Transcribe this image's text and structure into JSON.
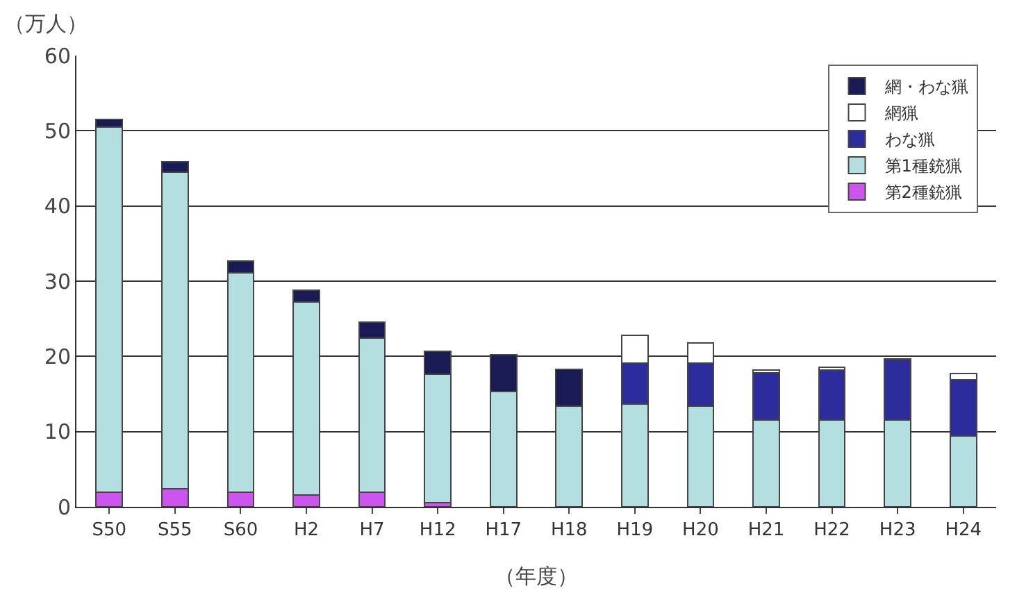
{
  "chart_data": {
    "type": "bar",
    "stacked": true,
    "xlabel": "（年度）",
    "ylabel": "（万人）",
    "categories": [
      "S50",
      "S55",
      "S60",
      "H2",
      "H7",
      "H12",
      "H17",
      "H18",
      "H19",
      "H20",
      "H21",
      "H22",
      "H23",
      "H24"
    ],
    "series": [
      {
        "name": "第2種銃猟",
        "color": "#cc55ee",
        "values": [
          1.9,
          2.4,
          1.9,
          1.6,
          1.9,
          0.6,
          0,
          0,
          0,
          0,
          0,
          0,
          0,
          0
        ]
      },
      {
        "name": "第1種銃猟",
        "color": "#b4dfe0",
        "values": [
          48.6,
          42.1,
          29.2,
          25.6,
          20.5,
          17.0,
          15.3,
          13.4,
          13.7,
          13.4,
          11.5,
          11.5,
          11.5,
          9.4
        ]
      },
      {
        "name": "わな猟",
        "color": "#2c2c9c",
        "values": [
          null,
          null,
          null,
          null,
          null,
          null,
          null,
          null,
          5.4,
          5.7,
          6.3,
          6.7,
          8.1,
          7.5
        ]
      },
      {
        "name": "網猟",
        "color": "#ffffff",
        "values": [
          null,
          null,
          null,
          null,
          null,
          null,
          null,
          null,
          3.7,
          2.7,
          0.4,
          0.4,
          0.1,
          0.8
        ]
      },
      {
        "name": "網・わな猟",
        "color": "#1a1a55",
        "values": [
          1.0,
          1.4,
          1.6,
          1.6,
          2.2,
          3.1,
          4.9,
          4.9,
          null,
          null,
          null,
          null,
          null,
          null
        ]
      }
    ],
    "ylim": [
      0,
      60
    ],
    "yticks": [
      0,
      10,
      20,
      30,
      40,
      50,
      60
    ],
    "grid": "y",
    "legend": "top right"
  }
}
